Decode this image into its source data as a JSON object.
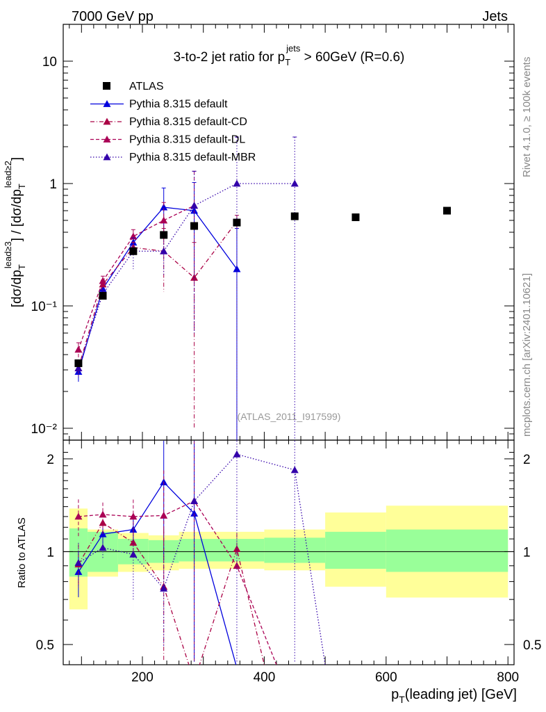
{
  "header": {
    "left": "7000 GeV pp",
    "right": "Jets"
  },
  "side_labels": {
    "rivet": "Rivet 4.1.0, ≥ 100k events",
    "mcplots": "mcplots.cern.ch [arXiv:2401.10621]"
  },
  "chart_data": {
    "type": "line",
    "title": "3-to-2 jet ratio for p_T^jets > 60GeV (R=0.6)",
    "title_parts": {
      "pre": "3-to-2 jet ratio for p",
      "sub": "T",
      "sup": "jets",
      "post": " > 60GeV (R=0.6)"
    },
    "analysis_id": "(ATLAS_2011_I917599)",
    "xlabel": "p_T(leading jet) [GeV]",
    "xlabel_parts": {
      "p": "p",
      "sub": "T",
      "rest": "(leading jet) [GeV]"
    },
    "ylabel": "[dσ/dp_T^{lead≥3}] / [dσ/dp_T^{lead≥2}]",
    "ylabel_parts": {
      "a": "[dσ/dp",
      "sub": "T",
      "sup1": "lead≥3",
      "b": "] / [dσ/dp",
      "sup2": "lead≥2",
      "c": "]"
    },
    "ratio_ylabel": "Ratio to ATLAS",
    "xlim": [
      70,
      810
    ],
    "ylim": [
      0.008,
      20
    ],
    "yscale": "log",
    "ratio_ylim": [
      0.43,
      2.3
    ],
    "x_ticks": [
      200,
      400,
      600,
      800
    ],
    "x_tick_labels": [
      "200",
      "400",
      "600",
      "800"
    ],
    "y_ticks": [
      0.01,
      0.1,
      1,
      10
    ],
    "y_tick_labels": [
      "10⁻²",
      "10⁻¹",
      "1",
      "10"
    ],
    "ratio_ticks": [
      0.5,
      1,
      2
    ],
    "ratio_tick_labels": [
      "0.5",
      "1",
      "2"
    ],
    "data": {
      "name": "ATLAS",
      "x": [
        95,
        135,
        185,
        235,
        285,
        355,
        450,
        550,
        700
      ],
      "y": [
        0.034,
        0.121,
        0.28,
        0.38,
        0.45,
        0.48,
        0.54,
        0.53,
        0.6
      ],
      "xlo": [
        80,
        110,
        160,
        210,
        260,
        310,
        400,
        500,
        600
      ],
      "xhi": [
        110,
        160,
        210,
        260,
        310,
        400,
        500,
        600,
        800
      ]
    },
    "bands": {
      "green": [
        [
          0.83,
          1.19
        ],
        [
          0.86,
          1.16
        ],
        [
          0.91,
          1.1
        ],
        [
          0.92,
          1.09
        ],
        [
          0.93,
          1.1
        ],
        [
          0.93,
          1.1
        ],
        [
          0.92,
          1.11
        ],
        [
          0.88,
          1.16
        ],
        [
          0.86,
          1.18
        ]
      ],
      "yellow": [
        [
          0.65,
          1.38
        ],
        [
          0.83,
          1.18
        ],
        [
          0.86,
          1.15
        ],
        [
          0.87,
          1.13
        ],
        [
          0.88,
          1.16
        ],
        [
          0.88,
          1.16
        ],
        [
          0.87,
          1.18
        ],
        [
          0.77,
          1.34
        ],
        [
          0.71,
          1.41
        ]
      ]
    },
    "series": [
      {
        "name": "Pythia 8.315 default",
        "color": "#0000dd",
        "dash": "",
        "x": [
          95,
          135,
          185,
          235,
          285,
          355
        ],
        "y": [
          0.029,
          0.138,
          0.33,
          0.64,
          0.6,
          0.2
        ],
        "yerr": [
          0.005,
          0.01,
          0.025,
          0.28,
          0.42,
          0.23
        ],
        "ratio_x": [
          95,
          135,
          185,
          235,
          285,
          355
        ],
        "ratio": [
          0.86,
          1.14,
          1.18,
          1.68,
          1.33,
          0.42
        ]
      },
      {
        "name": "Pythia 8.315 default-CD",
        "color": "#aa0044",
        "dash": "6,3,1,3",
        "x": [
          95,
          135,
          185,
          235,
          285,
          355
        ],
        "y": [
          0.031,
          0.15,
          0.3,
          0.28,
          0.17,
          0.49
        ],
        "yerr": [
          0.005,
          0.012,
          0.03,
          0.15,
          0.16,
          0.06
        ],
        "ratio_x": [
          95,
          135,
          185,
          235,
          285,
          355,
          400
        ],
        "ratio": [
          0.91,
          1.24,
          1.07,
          0.77,
          0.38,
          1.02,
          0.43
        ]
      },
      {
        "name": "Pythia 8.315 default-DL",
        "color": "#aa0055",
        "dash": "5,3",
        "x": [
          95,
          135,
          185,
          235,
          285
        ],
        "y": [
          0.044,
          0.16,
          0.37,
          0.5,
          0.66
        ],
        "yerr": [
          0.006,
          0.015,
          0.05,
          0.2,
          0.6
        ],
        "ratio_x": [
          95,
          135,
          185,
          235,
          285,
          355,
          420
        ],
        "ratio": [
          1.3,
          1.32,
          1.3,
          1.31,
          1.46,
          0.9,
          0.43
        ]
      },
      {
        "name": "Pythia 8.315 default-MBR",
        "color": "#3300aa",
        "dash": "1.5,2.5",
        "x": [
          95,
          135,
          185,
          235,
          285,
          355,
          450
        ],
        "y": [
          0.031,
          0.125,
          0.28,
          0.28,
          0.66,
          1.0,
          1.0
        ],
        "yerr": [
          0.005,
          0.01,
          0.08,
          0.1,
          0.6,
          1.4,
          1.4
        ],
        "ratio_x": [
          95,
          135,
          185,
          235,
          285,
          355,
          450,
          500
        ],
        "ratio": [
          0.92,
          1.03,
          0.98,
          0.76,
          1.46,
          2.07,
          1.84,
          0.43
        ]
      }
    ]
  }
}
